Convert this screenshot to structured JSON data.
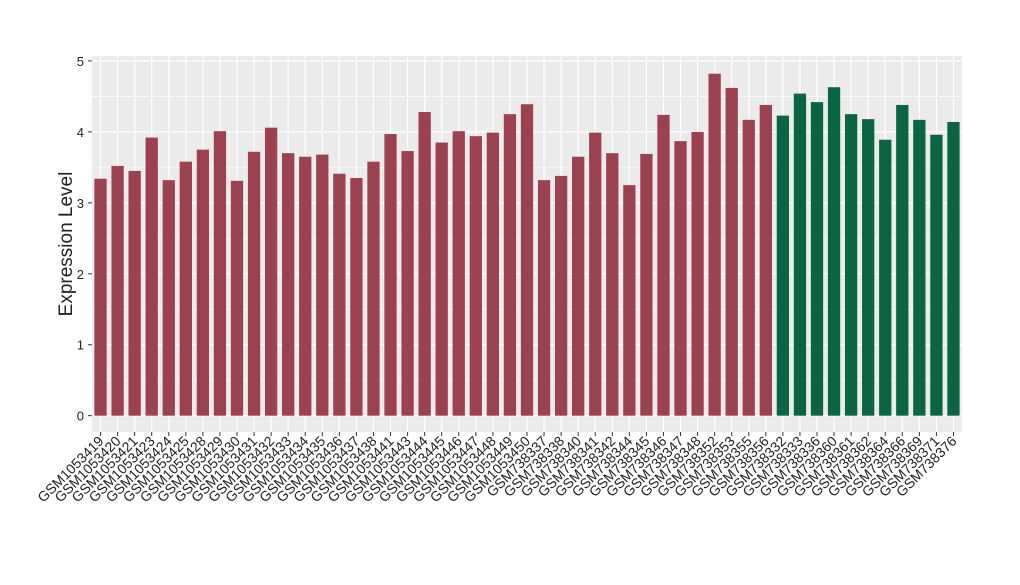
{
  "chart_data": {
    "type": "bar",
    "y_label": "Expression Level",
    "categories": [
      "GSM1053419",
      "GSM1053420",
      "GSM1053421",
      "GSM1053423",
      "GSM1053424",
      "GSM1053425",
      "GSM1053428",
      "GSM1053429",
      "GSM1053430",
      "GSM1053431",
      "GSM1053432",
      "GSM1053433",
      "GSM1053434",
      "GSM1053435",
      "GSM1053436",
      "GSM1053437",
      "GSM1053438",
      "GSM1053441",
      "GSM1053443",
      "GSM1053444",
      "GSM1053445",
      "GSM1053446",
      "GSM1053447",
      "GSM1053448",
      "GSM1053449",
      "GSM1053450",
      "GSM738337",
      "GSM738338",
      "GSM738340",
      "GSM738341",
      "GSM738342",
      "GSM738344",
      "GSM738345",
      "GSM738346",
      "GSM738347",
      "GSM738348",
      "GSM738352",
      "GSM738353",
      "GSM738355",
      "GSM738356",
      "GSM738332",
      "GSM738333",
      "GSM738336",
      "GSM738360",
      "GSM738361",
      "GSM738362",
      "GSM738364",
      "GSM738366",
      "GSM738369",
      "GSM738371",
      "GSM738376"
    ],
    "values": [
      3.34,
      3.52,
      3.45,
      3.92,
      3.32,
      3.58,
      3.75,
      4.01,
      3.31,
      3.72,
      4.06,
      3.7,
      3.65,
      3.68,
      3.41,
      3.35,
      3.58,
      3.97,
      3.73,
      4.28,
      3.85,
      4.01,
      3.94,
      3.99,
      4.25,
      4.39,
      3.32,
      3.38,
      3.65,
      3.99,
      3.7,
      3.25,
      3.69,
      4.24,
      3.87,
      4.0,
      4.82,
      4.62,
      4.17,
      4.38,
      4.23,
      4.54,
      4.42,
      4.63,
      4.25,
      4.18,
      3.89,
      4.38,
      4.17,
      3.96,
      4.14
    ],
    "colors": [
      "#9b4150",
      "#9b4150",
      "#9b4150",
      "#9b4150",
      "#9b4150",
      "#9b4150",
      "#9b4150",
      "#9b4150",
      "#9b4150",
      "#9b4150",
      "#9b4150",
      "#9b4150",
      "#9b4150",
      "#9b4150",
      "#9b4150",
      "#9b4150",
      "#9b4150",
      "#9b4150",
      "#9b4150",
      "#9b4150",
      "#9b4150",
      "#9b4150",
      "#9b4150",
      "#9b4150",
      "#9b4150",
      "#9b4150",
      "#9b4150",
      "#9b4150",
      "#9b4150",
      "#9b4150",
      "#9b4150",
      "#9b4150",
      "#9b4150",
      "#9b4150",
      "#9b4150",
      "#9b4150",
      "#9b4150",
      "#9b4150",
      "#9b4150",
      "#9b4150",
      "#0b6444",
      "#0b6444",
      "#0b6444",
      "#0b6444",
      "#0b6444",
      "#0b6444",
      "#0b6444",
      "#0b6444",
      "#0b6444",
      "#0b6444",
      "#0b6444"
    ],
    "ylim": [
      -0.23,
      5.07
    ],
    "yticks": [
      0,
      1,
      2,
      3,
      4,
      5
    ],
    "grid": true
  }
}
